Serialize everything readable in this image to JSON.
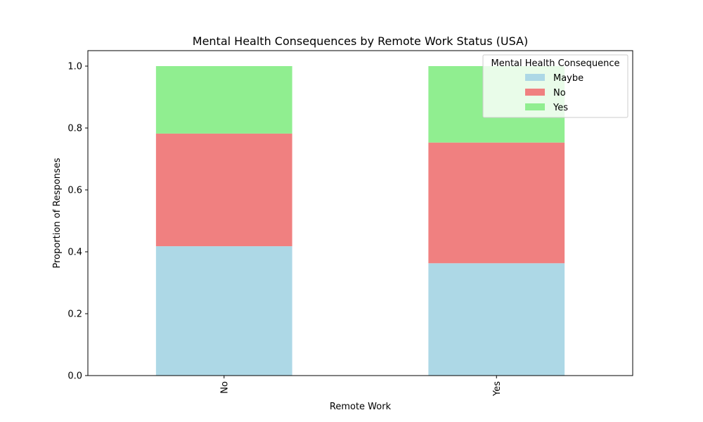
{
  "chart_data": {
    "type": "bar",
    "stacked": true,
    "title": "Mental Health Consequences by Remote Work Status (USA)",
    "xlabel": "Remote Work",
    "ylabel": "Proportion of Responses",
    "categories": [
      "No",
      "Yes"
    ],
    "ylim": [
      0,
      1.05
    ],
    "yticks": [
      0.0,
      0.2,
      0.4,
      0.6,
      0.8,
      1.0
    ],
    "ytick_labels": [
      "0.0",
      "0.2",
      "0.4",
      "0.6",
      "0.8",
      "1.0"
    ],
    "grid": false,
    "legend": {
      "title": "Mental Health Consequence",
      "placement": "top-right"
    },
    "series": [
      {
        "name": "Maybe",
        "color": "#add8e6",
        "values": [
          0.418,
          0.363
        ]
      },
      {
        "name": "No",
        "color": "#f08080",
        "values": [
          0.364,
          0.39
        ]
      },
      {
        "name": "Yes",
        "color": "#90ee90",
        "values": [
          0.218,
          0.247
        ]
      }
    ]
  }
}
